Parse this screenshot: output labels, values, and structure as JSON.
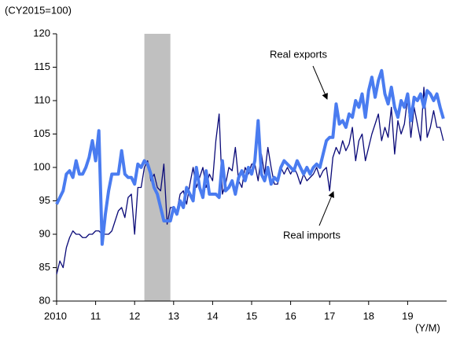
{
  "chart_data": {
    "type": "line",
    "y_label": "(CY2015=100)",
    "x_label": "(Y/M)",
    "x": [
      2010,
      2010.083,
      2010.167,
      2010.25,
      2010.333,
      2010.417,
      2010.5,
      2010.583,
      2010.667,
      2010.75,
      2010.833,
      2010.917,
      2011,
      2011.083,
      2011.167,
      2011.25,
      2011.333,
      2011.417,
      2011.5,
      2011.583,
      2011.667,
      2011.75,
      2011.833,
      2011.917,
      2012,
      2012.083,
      2012.167,
      2012.25,
      2012.333,
      2012.417,
      2012.5,
      2012.583,
      2012.667,
      2012.75,
      2012.833,
      2012.917,
      2013,
      2013.083,
      2013.167,
      2013.25,
      2013.333,
      2013.417,
      2013.5,
      2013.583,
      2013.667,
      2013.75,
      2013.833,
      2013.917,
      2014,
      2014.083,
      2014.167,
      2014.25,
      2014.333,
      2014.417,
      2014.5,
      2014.583,
      2014.667,
      2014.75,
      2014.833,
      2014.917,
      2015,
      2015.083,
      2015.167,
      2015.25,
      2015.333,
      2015.417,
      2015.5,
      2015.583,
      2015.667,
      2015.75,
      2015.833,
      2015.917,
      2016,
      2016.083,
      2016.167,
      2016.25,
      2016.333,
      2016.417,
      2016.5,
      2016.583,
      2016.667,
      2016.75,
      2016.833,
      2016.917,
      2017,
      2017.083,
      2017.167,
      2017.25,
      2017.333,
      2017.417,
      2017.5,
      2017.583,
      2017.667,
      2017.75,
      2017.833,
      2017.917,
      2018,
      2018.083,
      2018.167,
      2018.25,
      2018.333,
      2018.417,
      2018.5,
      2018.583,
      2018.667,
      2018.75,
      2018.833,
      2018.917,
      2019,
      2019.083,
      2019.167,
      2019.25,
      2019.333,
      2019.417,
      2019.5,
      2019.583,
      2019.667,
      2019.75,
      2019.833,
      2019.917
    ],
    "series": [
      {
        "name": "Real exports",
        "color": "#4a7cf0",
        "width": 4,
        "values": [
          94.5,
          95.5,
          96.5,
          99,
          99.5,
          98.5,
          101,
          99,
          99,
          100,
          101.5,
          104,
          101,
          105.5,
          88.5,
          93,
          96.5,
          99,
          99,
          99,
          102.5,
          99,
          98.5,
          98.5,
          97.5,
          100.5,
          100,
          101,
          100.5,
          99,
          97,
          96,
          94,
          92,
          92,
          92,
          94,
          93,
          95,
          94,
          97,
          96,
          95,
          100,
          97,
          95.5,
          99.5,
          96,
          96,
          96,
          95.5,
          101,
          96.5,
          97,
          98,
          96,
          98.5,
          99.5,
          98,
          100,
          99,
          101,
          107,
          99,
          98,
          100,
          97.5,
          98.5,
          98,
          100,
          101,
          100.5,
          100,
          99.5,
          101,
          100,
          99,
          100,
          99,
          100,
          100.5,
          100,
          102,
          104,
          104.5,
          104.5,
          109.5,
          106.5,
          107,
          106,
          108,
          107.5,
          110,
          109,
          111,
          107.5,
          111.5,
          113.5,
          110.5,
          113,
          114.5,
          111,
          109.5,
          112,
          109,
          107.5,
          110,
          109,
          111,
          107,
          110.5,
          110,
          111,
          109,
          111.5,
          111,
          110,
          111,
          109,
          107.3
        ]
      },
      {
        "name": "Real imports",
        "color": "#0a0a78",
        "width": 1.3,
        "values": [
          84,
          86,
          85,
          88,
          89.5,
          90.5,
          90,
          90,
          89.5,
          89.5,
          90,
          90,
          90.5,
          90.5,
          90,
          90,
          90,
          90.5,
          92,
          93.5,
          94,
          92.5,
          95.5,
          96,
          90,
          97,
          97,
          100,
          101,
          98,
          99,
          97,
          96.5,
          100.5,
          91.5,
          94,
          94,
          93.5,
          96,
          96.5,
          94.5,
          97.5,
          100,
          97,
          98.5,
          100,
          97,
          99,
          98,
          104,
          108,
          96,
          97.5,
          100,
          99.5,
          103,
          98,
          97,
          100,
          99,
          100.5,
          100.5,
          98,
          102,
          99,
          103,
          100,
          97.5,
          97.5,
          100,
          99,
          100,
          99,
          100,
          99,
          97.5,
          99,
          98,
          98.5,
          99,
          100,
          98.5,
          99.5,
          100,
          96.5,
          101.5,
          103,
          102,
          104,
          102.5,
          103.5,
          106,
          101,
          104,
          105,
          101,
          103,
          105,
          106.5,
          108,
          104,
          106,
          104.5,
          109,
          102,
          107,
          105,
          106.5,
          110.5,
          104.5,
          109,
          106.5,
          104,
          112,
          104.5,
          106,
          108.5,
          106,
          106,
          104
        ]
      }
    ],
    "shade": [
      2012.25,
      2012.917
    ],
    "shade_color": "#c0c0c0",
    "xlim": [
      2010,
      2020
    ],
    "xticks": [
      {
        "value": 2010,
        "label": "2010"
      },
      {
        "value": 2011,
        "label": "11"
      },
      {
        "value": 2012,
        "label": "12"
      },
      {
        "value": 2013,
        "label": "13"
      },
      {
        "value": 2014,
        "label": "14"
      },
      {
        "value": 2015,
        "label": "15"
      },
      {
        "value": 2016,
        "label": "16"
      },
      {
        "value": 2017,
        "label": "17"
      },
      {
        "value": 2018,
        "label": "18"
      },
      {
        "value": 2019,
        "label": "19"
      }
    ],
    "ylim": [
      80,
      120
    ],
    "yticks": [
      80,
      85,
      90,
      95,
      100,
      105,
      110,
      115,
      120
    ],
    "grid": false
  }
}
